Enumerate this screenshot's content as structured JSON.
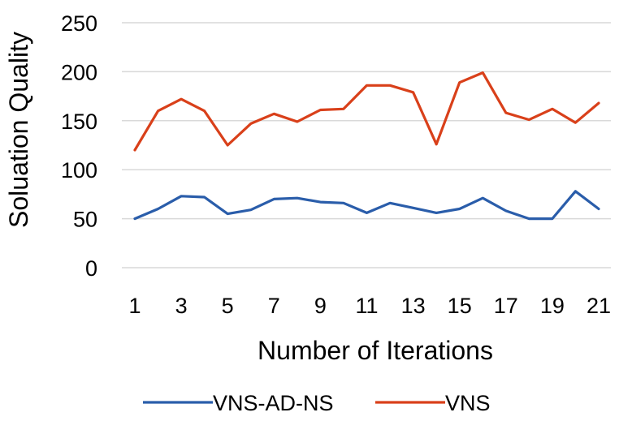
{
  "chart_data": {
    "type": "line",
    "title": "",
    "xlabel": "Number of Iterations",
    "ylabel": "Soluation Quality",
    "x": [
      1,
      2,
      3,
      4,
      5,
      6,
      7,
      8,
      9,
      10,
      11,
      12,
      13,
      14,
      15,
      16,
      17,
      18,
      19,
      20,
      21
    ],
    "x_tick_labels": [
      "1",
      "3",
      "5",
      "7",
      "9",
      "11",
      "13",
      "15",
      "17",
      "19",
      "21"
    ],
    "ylim": [
      0,
      250
    ],
    "y_ticks": [
      0,
      50,
      100,
      150,
      200,
      250
    ],
    "grid": true,
    "legend_position": "bottom",
    "series": [
      {
        "name": "VNS-AD-NS",
        "color": "#2a5daa",
        "values": [
          50,
          60,
          73,
          72,
          55,
          59,
          70,
          71,
          67,
          66,
          56,
          66,
          61,
          56,
          60,
          71,
          58,
          50,
          50,
          78,
          60
        ]
      },
      {
        "name": "VNS",
        "color": "#d9401a",
        "values": [
          120,
          160,
          172,
          160,
          125,
          147,
          157,
          149,
          161,
          162,
          186,
          186,
          179,
          126,
          189,
          199,
          158,
          151,
          162,
          148,
          168
        ]
      }
    ]
  }
}
